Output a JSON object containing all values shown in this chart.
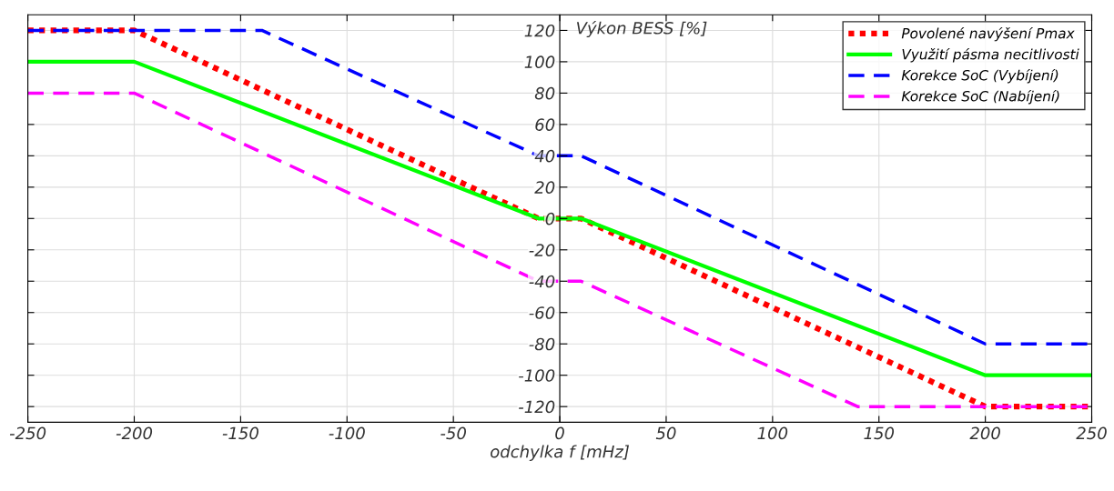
{
  "chart_data": {
    "type": "line",
    "xlabel": "odchylka f [mHz]",
    "ylabel": "Výkon BESS [%]",
    "xlim": [
      -250,
      250
    ],
    "xticks": [
      -250,
      -200,
      -150,
      -100,
      -50,
      0,
      50,
      100,
      150,
      200,
      250
    ],
    "ylim": [
      -130,
      130
    ],
    "yticks": [
      -120,
      -100,
      -80,
      -60,
      -40,
      -20,
      0,
      20,
      40,
      60,
      80,
      100,
      120
    ],
    "grid": true,
    "legend": "top right",
    "series": [
      {
        "name": "Povolené navýšení Pmax",
        "color": "#ff0000",
        "line_style": "dotted",
        "x": [
          -250,
          -200,
          -10,
          10,
          200,
          250
        ],
        "values": [
          120,
          120,
          0,
          0,
          -120,
          -120
        ]
      },
      {
        "name": "Využití pásma necitlivosti",
        "color": "#00ff00",
        "line_style": "solid",
        "x": [
          -250,
          -200,
          -10,
          10,
          200,
          250
        ],
        "values": [
          100,
          100,
          0,
          0,
          -100,
          -100
        ]
      },
      {
        "name": "Korekce SoC (Vybíjení)",
        "color": "#0000ff",
        "line_style": "dashed",
        "x": [
          -250,
          -140,
          -10,
          10,
          200,
          250
        ],
        "values": [
          120,
          120,
          40,
          40,
          -80,
          -80
        ]
      },
      {
        "name": "Korekce SoC (Nabíjení)",
        "color": "#ff00ff",
        "line_style": "dashed",
        "x": [
          -250,
          -200,
          -10,
          10,
          140,
          250
        ],
        "values": [
          80,
          80,
          -40,
          -40,
          -120,
          -120
        ]
      }
    ]
  }
}
